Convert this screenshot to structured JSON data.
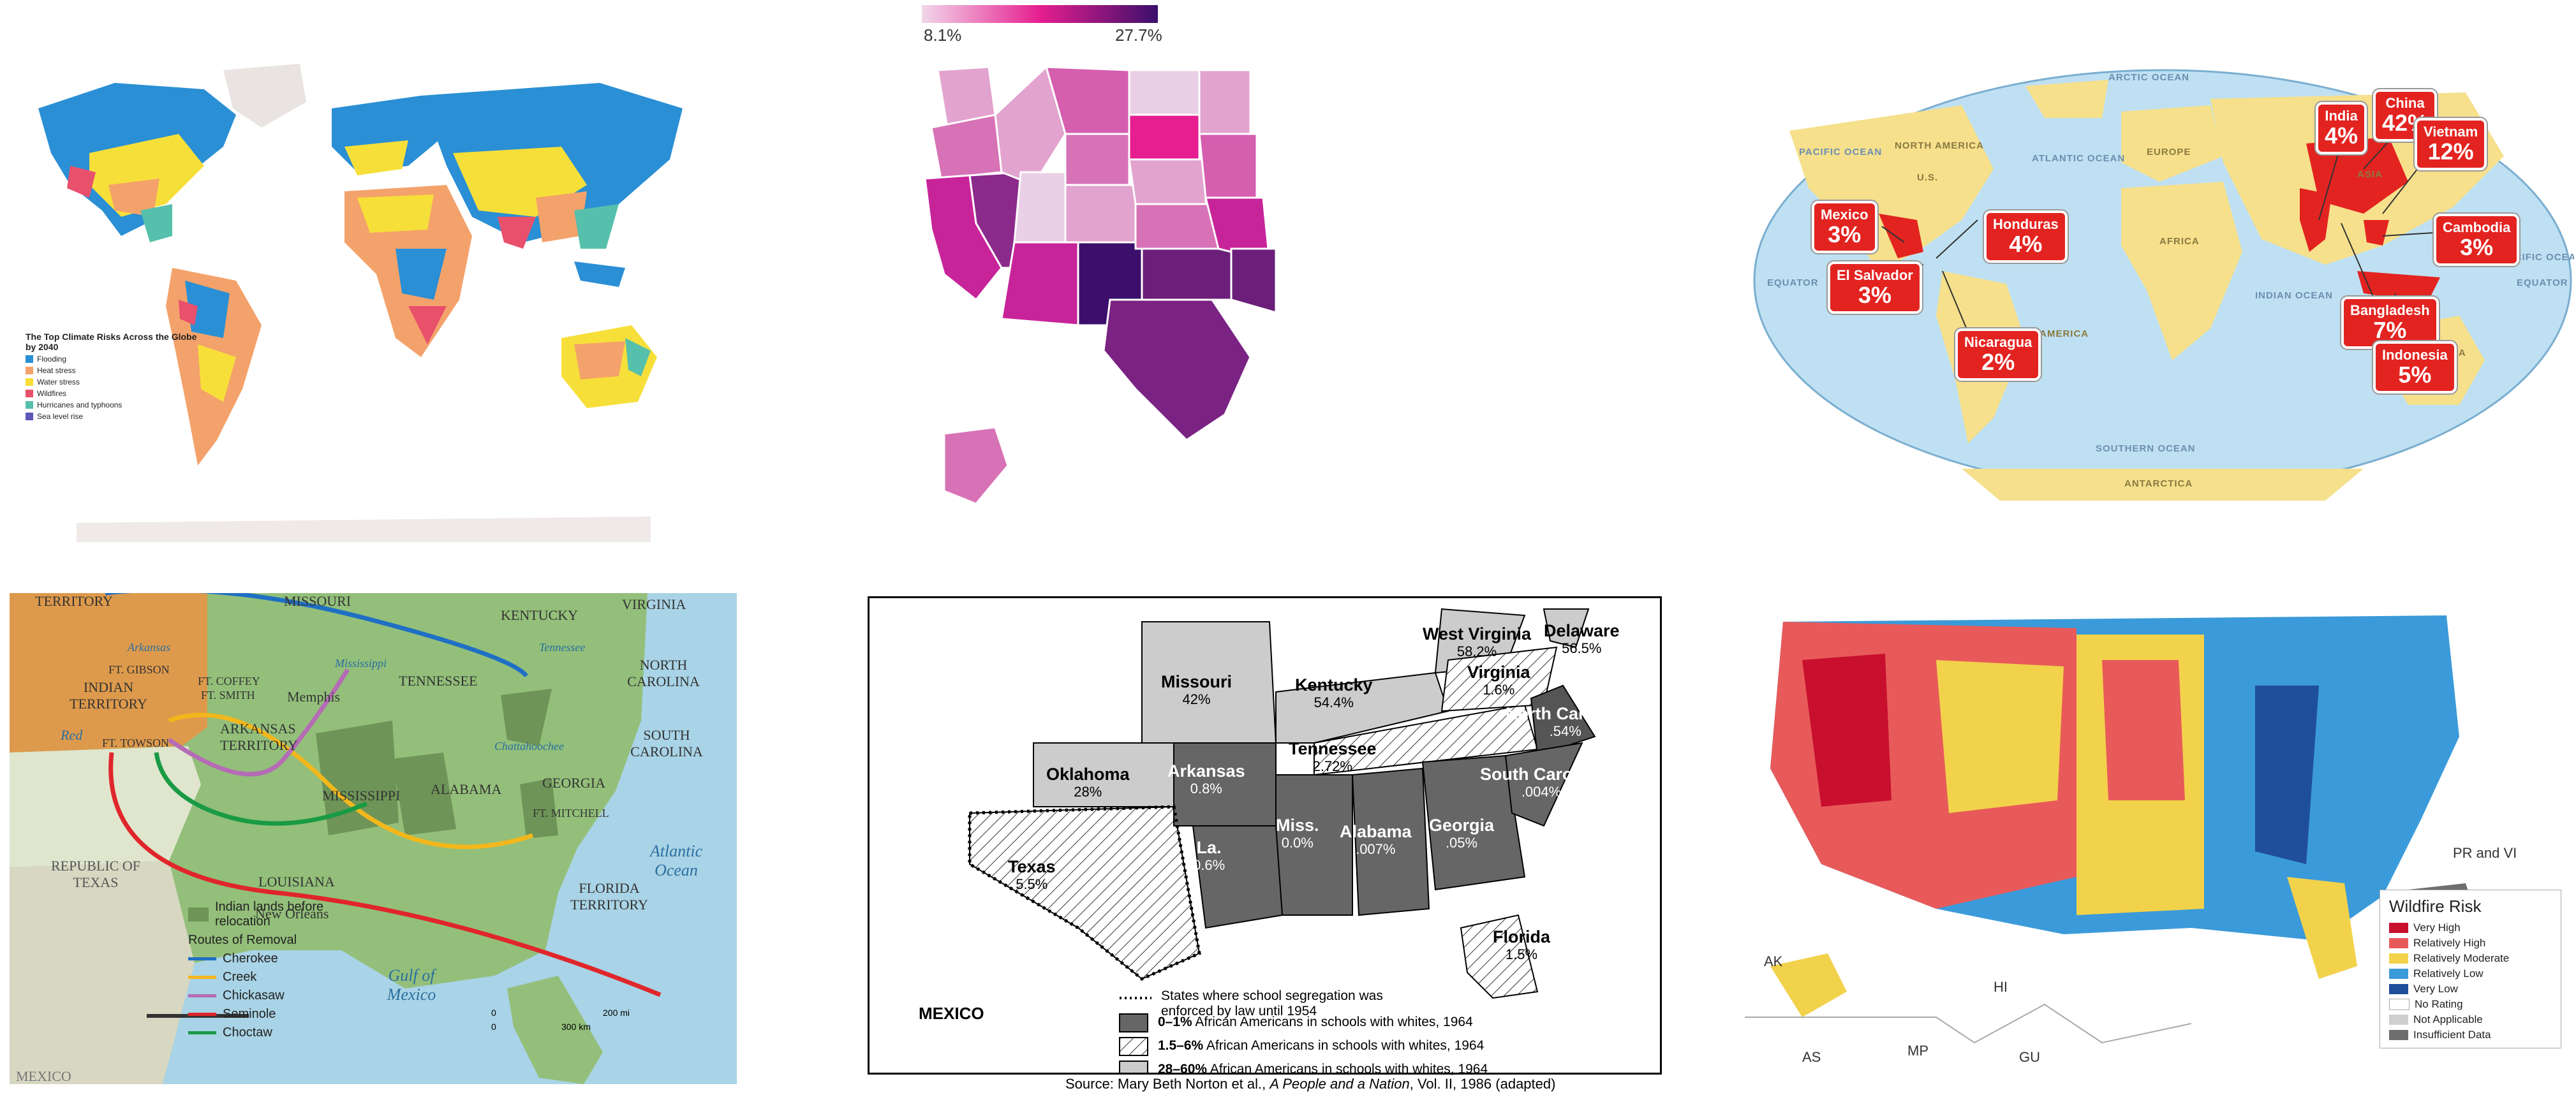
{
  "panel1": {
    "legend_title": "The Top Climate Risks Across the Globe by 2040",
    "legend_items": [
      {
        "label": "Flooding",
        "color": "#2a8fd4"
      },
      {
        "label": "Heat stress",
        "color": "#f4a26b"
      },
      {
        "label": "Water stress",
        "color": "#f7df3a"
      },
      {
        "label": "Wildfires",
        "color": "#e8506c"
      },
      {
        "label": "Hurricanes and typhoons",
        "color": "#56c0ac"
      },
      {
        "label": "Sea level rise",
        "color": "#5b56b7"
      }
    ]
  },
  "panel2": {
    "scale_min": "8.1%",
    "scale_max": "27.7%",
    "scale_colors": [
      "#f2d7ea",
      "#e61e8f",
      "#3b0f6b"
    ]
  },
  "panel3": {
    "ocean_labels": [
      "ARCTIC OCEAN",
      "PACIFIC OCEAN",
      "ATLANTIC OCEAN",
      "INDIAN OCEAN",
      "PACIFIC OCEAN",
      "SOUTHERN OCEAN"
    ],
    "land_labels": [
      "NORTH AMERICA",
      "U.S.",
      "SOUTH AMERICA",
      "EUROPE",
      "AFRICA",
      "ASIA",
      "AUSTRALIA",
      "ANTARCTICA",
      "EQUATOR",
      "EQUATOR"
    ],
    "callouts": [
      {
        "name": "India",
        "pct": "4%"
      },
      {
        "name": "China",
        "pct": "42%"
      },
      {
        "name": "Vietnam",
        "pct": "12%"
      },
      {
        "name": "Mexico",
        "pct": "3%"
      },
      {
        "name": "Honduras",
        "pct": "4%"
      },
      {
        "name": "El Salvador",
        "pct": "3%"
      },
      {
        "name": "Cambodia",
        "pct": "3%"
      },
      {
        "name": "Bangladesh",
        "pct": "7%"
      },
      {
        "name": "Nicaragua",
        "pct": "2%"
      },
      {
        "name": "Indonesia",
        "pct": "5%"
      }
    ]
  },
  "panel4": {
    "labels": {
      "territory": "TERRITORY",
      "missouri": "MISSOURI",
      "kentucky": "KENTUCKY",
      "virginia": "VIRGINIA",
      "ft_gibson": "FT. GIBSON",
      "ft_coffey": "FT. COFFEY",
      "ft_smith": "FT. SMITH",
      "indian_territory": "INDIAN TERRITORY",
      "tennessee": "TENNESSEE",
      "north_carolina": "NORTH CAROLINA",
      "memphis": "Memphis",
      "arkansas_territory": "ARKANSAS TERRITORY",
      "south_carolina": "SOUTH CAROLINA",
      "ft_towson": "FT. TOWSON",
      "red": "Red",
      "mississippi": "MISSISSIPPI",
      "alabama": "ALABAMA",
      "georgia": "GEORGIA",
      "ft_mitchell": "FT. MITCHELL",
      "republic_of_texas": "REPUBLIC OF TEXAS",
      "louisiana": "LOUISIANA",
      "florida_territory": "FLORIDA TERRITORY",
      "atlantic_ocean": "Atlantic Ocean",
      "new_orleans": "New Orleans",
      "gulf_of_mexico": "Gulf of Mexico",
      "mexico": "MEXICO",
      "arkansas_river": "Arkansas",
      "mississippi_river": "Mississippi",
      "tennessee_river": "Tennessee",
      "chattahoochee": "Chattahoochee"
    },
    "legend": {
      "lands": "Indian lands before relocation",
      "routes_title": "Routes of Removal",
      "routes": [
        {
          "label": "Cherokee",
          "color": "#1f6fc4"
        },
        {
          "label": "Creek",
          "color": "#f3b71c"
        },
        {
          "label": "Chickasaw",
          "color": "#b56bb5"
        },
        {
          "label": "Seminole",
          "color": "#e0262b"
        },
        {
          "label": "Choctaw",
          "color": "#1a9a45"
        }
      ]
    },
    "scale": {
      "mi": "200 mi",
      "km": "300 km",
      "zero1": "0",
      "zero2": "0"
    }
  },
  "panel5": {
    "states": [
      {
        "name": "West Virginia",
        "value": "58.2%"
      },
      {
        "name": "Delaware",
        "value": "56.5%"
      },
      {
        "name": "Missouri",
        "value": "42%"
      },
      {
        "name": "Kentucky",
        "value": "54.4%"
      },
      {
        "name": "Virginia",
        "value": "1.6%"
      },
      {
        "name": "North Carolina",
        "value": ".54%"
      },
      {
        "name": "Oklahoma",
        "value": "28%"
      },
      {
        "name": "Arkansas",
        "value": "0.8%"
      },
      {
        "name": "Tennessee",
        "value": "2.72%"
      },
      {
        "name": "South Carolina",
        "value": ".004%"
      },
      {
        "name": "Miss.",
        "value": "0.0%"
      },
      {
        "name": "Alabama",
        "value": ".007%"
      },
      {
        "name": "Georgia",
        "value": ".05%"
      },
      {
        "name": "Texas",
        "value": "5.5%"
      },
      {
        "name": "La.",
        "value": "0.6%"
      },
      {
        "name": "Florida",
        "value": "1.5%"
      }
    ],
    "mexico": "MEXICO",
    "legend": [
      {
        "bold": "",
        "text": "States where school segregation was enforced by law until 1954"
      },
      {
        "bold": "0–1%",
        "text": "African Americans in schools with whites, 1964"
      },
      {
        "bold": "1.5–6%",
        "text": "African Americans in schools with whites, 1964"
      },
      {
        "bold": "28–60%",
        "text": "African Americans in schools with whites, 1964"
      }
    ],
    "source_prefix": "Source: Mary Beth Norton et al., ",
    "source_title": "A People and a Nation",
    "source_suffix": ", Vol. II, 1986 (adapted)"
  },
  "panel6": {
    "legend_title": "Wildfire Risk",
    "legend_items": [
      {
        "label": "Very High",
        "color": "#c8102e"
      },
      {
        "label": "Relatively High",
        "color": "#e85a5a"
      },
      {
        "label": "Relatively Moderate",
        "color": "#f2d24b"
      },
      {
        "label": "Relatively Low",
        "color": "#3b9ad9"
      },
      {
        "label": "Very Low",
        "color": "#1f4e9a"
      },
      {
        "label": "No Rating",
        "color": "#ffffff"
      },
      {
        "label": "Not Applicable",
        "color": "#cfcfcf"
      },
      {
        "label": "Insufficient Data",
        "color": "#6e6e6e"
      }
    ],
    "territories": [
      "AK",
      "HI",
      "AS",
      "MP",
      "GU",
      "PR and VI"
    ]
  }
}
